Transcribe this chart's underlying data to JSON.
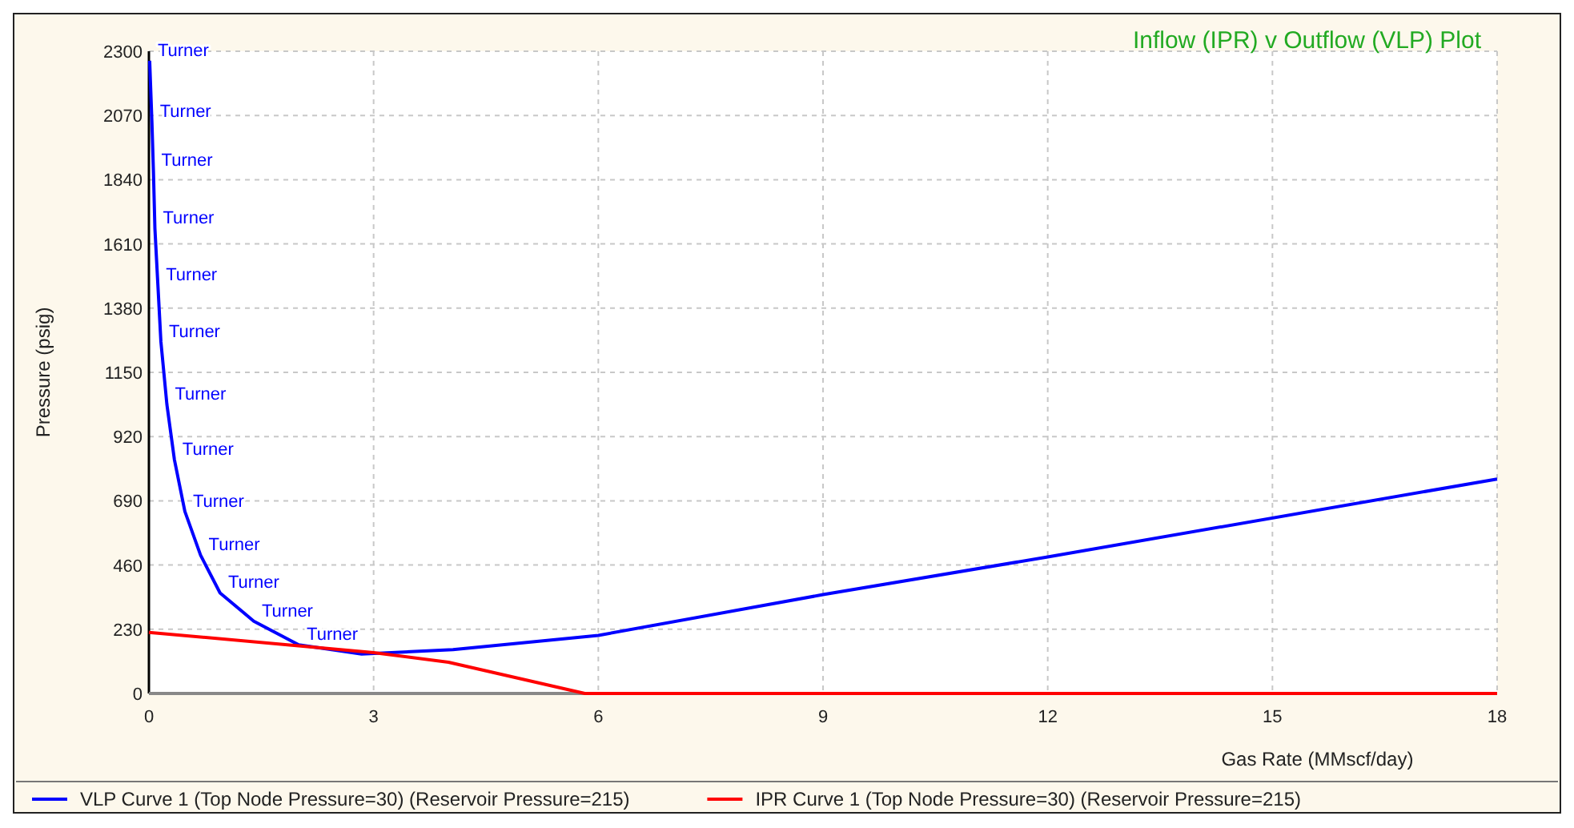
{
  "chart_data": {
    "type": "line",
    "title": "Inflow (IPR) v Outflow (VLP) Plot",
    "xlabel": "Gas Rate  (MMscf/day)",
    "ylabel": "Pressure  (psig)",
    "xlim": [
      0,
      18
    ],
    "xticks": [
      0,
      3,
      6,
      9,
      12,
      15,
      18
    ],
    "ylim": [
      0,
      2300
    ],
    "yticks": [
      0,
      230,
      460,
      690,
      920,
      1150,
      1380,
      1610,
      1840,
      2070,
      2300
    ],
    "grid": true,
    "legend": "bottom",
    "marker": "none",
    "line_style": "solid",
    "series": [
      {
        "name": "VLP Curve 1 (Top Node Pressure=30) (Reservoir Pressure=215)",
        "color": "#0000ff",
        "x": [
          0.01,
          0.04,
          0.06,
          0.08,
          0.12,
          0.16,
          0.24,
          0.34,
          0.48,
          0.69,
          0.95,
          1.4,
          2.0,
          2.84,
          4.06,
          6.0,
          9.0,
          12.0,
          18.0
        ],
        "values": [
          2266,
          2047,
          1873,
          1665,
          1462,
          1260,
          1035,
          838,
          652,
          495,
          360,
          259,
          174,
          141,
          157,
          208,
          354,
          489,
          768
        ]
      },
      {
        "name": "IPR Curve 1 (Top Node Pressure=30) (Reservoir Pressure=215)",
        "color": "#ff0000",
        "x": [
          0,
          3.0,
          4.0,
          5.82,
          18.0
        ],
        "values": [
          219,
          146,
          112,
          0,
          0
        ]
      }
    ],
    "annotations": [
      {
        "text": "Turner",
        "x": 0.01,
        "y": 2266
      },
      {
        "text": "Turner",
        "x": 0.04,
        "y": 2047
      },
      {
        "text": "Turner",
        "x": 0.06,
        "y": 1873
      },
      {
        "text": "Turner",
        "x": 0.08,
        "y": 1665
      },
      {
        "text": "Turner",
        "x": 0.12,
        "y": 1462
      },
      {
        "text": "Turner",
        "x": 0.16,
        "y": 1260
      },
      {
        "text": "Turner",
        "x": 0.24,
        "y": 1035
      },
      {
        "text": "Turner",
        "x": 0.34,
        "y": 838
      },
      {
        "text": "Turner",
        "x": 0.48,
        "y": 652
      },
      {
        "text": "Turner",
        "x": 0.69,
        "y": 495
      },
      {
        "text": "Turner",
        "x": 0.95,
        "y": 360
      },
      {
        "text": "Turner",
        "x": 1.4,
        "y": 259
      },
      {
        "text": "Turner",
        "x": 2.0,
        "y": 174
      }
    ]
  }
}
